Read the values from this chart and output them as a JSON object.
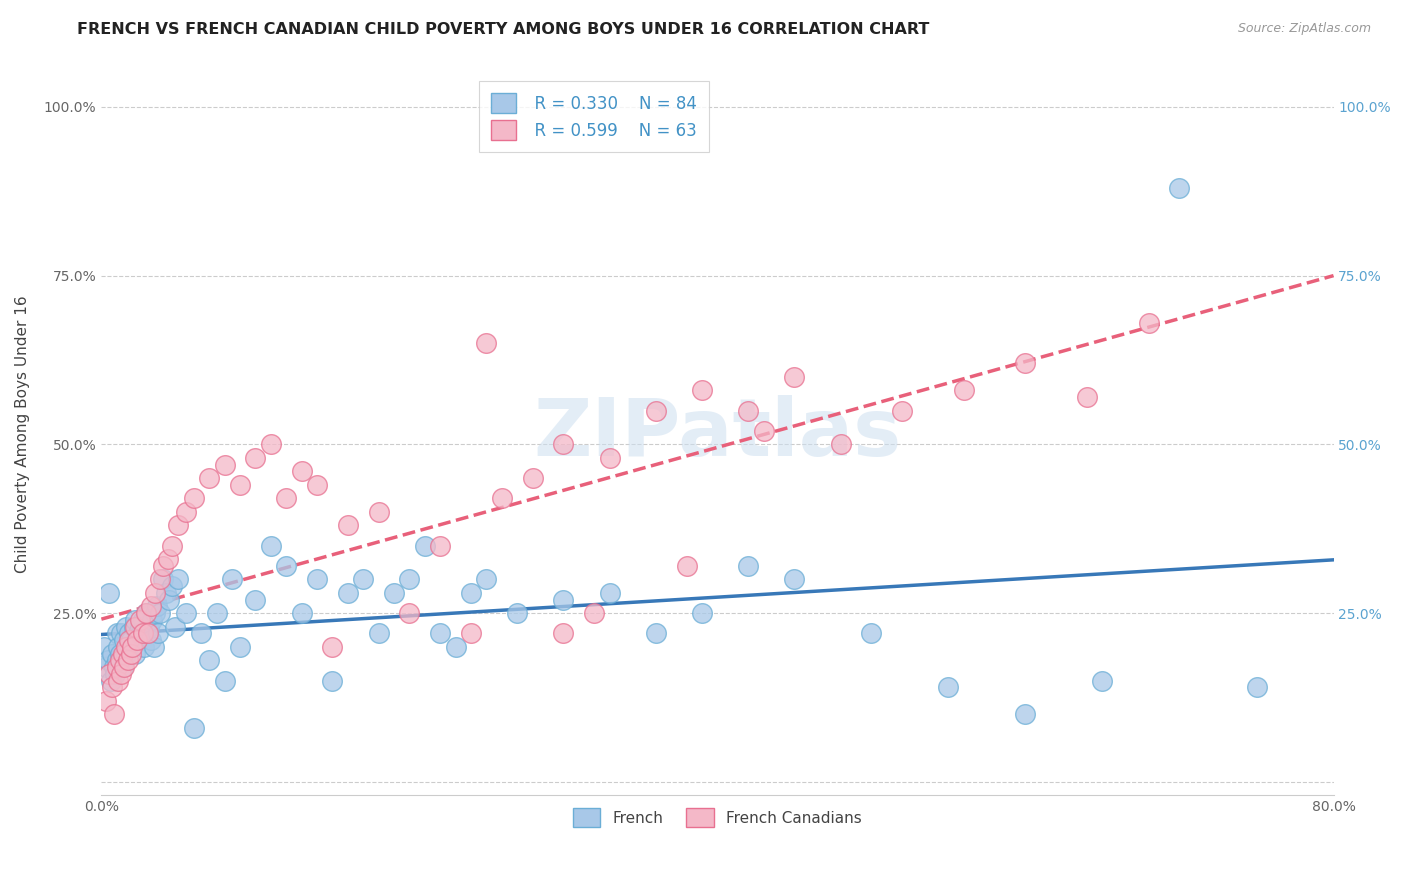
{
  "title": "FRENCH VS FRENCH CANADIAN CHILD POVERTY AMONG BOYS UNDER 16 CORRELATION CHART",
  "source": "Source: ZipAtlas.com",
  "ylabel": "Child Poverty Among Boys Under 16",
  "xlim": [
    0.0,
    0.8
  ],
  "ylim": [
    -0.02,
    1.05
  ],
  "yticks": [
    0.0,
    0.25,
    0.5,
    0.75,
    1.0
  ],
  "ytick_labels_left": [
    "",
    "25.0%",
    "50.0%",
    "75.0%",
    "100.0%"
  ],
  "ytick_labels_right": [
    "",
    "25.0%",
    "50.0%",
    "75.0%",
    "100.0%"
  ],
  "xticks": [
    0.0,
    0.1,
    0.2,
    0.3,
    0.4,
    0.5,
    0.6,
    0.7,
    0.8
  ],
  "xtick_labels": [
    "0.0%",
    "",
    "",
    "",
    "",
    "",
    "",
    "",
    "80.0%"
  ],
  "legend_r_french": "R = 0.330",
  "legend_n_french": "N = 84",
  "legend_r_canadian": "R = 0.599",
  "legend_n_canadian": "N = 63",
  "french_color": "#a8c8e8",
  "french_edge_color": "#6baed6",
  "canadian_color": "#f4b8c8",
  "canadian_edge_color": "#e87090",
  "trendline_french_color": "#3878b8",
  "trendline_canadian_color": "#e8607a",
  "watermark": "ZIPatlas",
  "french_scatter_x": [
    0.002,
    0.003,
    0.004,
    0.005,
    0.006,
    0.007,
    0.008,
    0.009,
    0.01,
    0.01,
    0.011,
    0.012,
    0.013,
    0.013,
    0.014,
    0.015,
    0.016,
    0.016,
    0.017,
    0.018,
    0.019,
    0.02,
    0.021,
    0.022,
    0.022,
    0.023,
    0.024,
    0.025,
    0.026,
    0.027,
    0.028,
    0.029,
    0.03,
    0.031,
    0.032,
    0.033,
    0.034,
    0.035,
    0.036,
    0.037,
    0.038,
    0.04,
    0.042,
    0.044,
    0.046,
    0.048,
    0.05,
    0.055,
    0.06,
    0.065,
    0.07,
    0.075,
    0.08,
    0.085,
    0.09,
    0.1,
    0.11,
    0.12,
    0.13,
    0.14,
    0.15,
    0.16,
    0.17,
    0.18,
    0.19,
    0.2,
    0.21,
    0.22,
    0.23,
    0.24,
    0.25,
    0.27,
    0.3,
    0.33,
    0.36,
    0.39,
    0.42,
    0.45,
    0.5,
    0.55,
    0.6,
    0.65,
    0.7,
    0.75
  ],
  "french_scatter_y": [
    0.2,
    0.17,
    0.18,
    0.28,
    0.15,
    0.19,
    0.17,
    0.16,
    0.22,
    0.18,
    0.2,
    0.19,
    0.18,
    0.22,
    0.17,
    0.21,
    0.19,
    0.23,
    0.2,
    0.22,
    0.21,
    0.2,
    0.23,
    0.19,
    0.24,
    0.21,
    0.22,
    0.23,
    0.22,
    0.24,
    0.2,
    0.25,
    0.22,
    0.23,
    0.21,
    0.24,
    0.2,
    0.25,
    0.26,
    0.22,
    0.25,
    0.3,
    0.28,
    0.27,
    0.29,
    0.23,
    0.3,
    0.25,
    0.08,
    0.22,
    0.18,
    0.25,
    0.15,
    0.3,
    0.2,
    0.27,
    0.35,
    0.32,
    0.25,
    0.3,
    0.15,
    0.28,
    0.3,
    0.22,
    0.28,
    0.3,
    0.35,
    0.22,
    0.2,
    0.28,
    0.3,
    0.25,
    0.27,
    0.28,
    0.22,
    0.25,
    0.32,
    0.3,
    0.22,
    0.14,
    0.1,
    0.15,
    0.88,
    0.14
  ],
  "canadian_scatter_x": [
    0.003,
    0.005,
    0.007,
    0.008,
    0.01,
    0.011,
    0.012,
    0.013,
    0.014,
    0.015,
    0.016,
    0.017,
    0.018,
    0.019,
    0.02,
    0.022,
    0.023,
    0.025,
    0.027,
    0.029,
    0.03,
    0.032,
    0.035,
    0.038,
    0.04,
    0.043,
    0.046,
    0.05,
    0.055,
    0.06,
    0.07,
    0.08,
    0.09,
    0.1,
    0.11,
    0.12,
    0.13,
    0.14,
    0.15,
    0.16,
    0.18,
    0.2,
    0.22,
    0.24,
    0.26,
    0.28,
    0.3,
    0.33,
    0.36,
    0.39,
    0.42,
    0.45,
    0.48,
    0.52,
    0.56,
    0.6,
    0.64,
    0.68,
    0.3,
    0.38,
    0.43,
    0.25,
    0.32
  ],
  "canadian_scatter_y": [
    0.12,
    0.16,
    0.14,
    0.1,
    0.17,
    0.15,
    0.18,
    0.16,
    0.19,
    0.17,
    0.2,
    0.18,
    0.21,
    0.19,
    0.2,
    0.23,
    0.21,
    0.24,
    0.22,
    0.25,
    0.22,
    0.26,
    0.28,
    0.3,
    0.32,
    0.33,
    0.35,
    0.38,
    0.4,
    0.42,
    0.45,
    0.47,
    0.44,
    0.48,
    0.5,
    0.42,
    0.46,
    0.44,
    0.2,
    0.38,
    0.4,
    0.25,
    0.35,
    0.22,
    0.42,
    0.45,
    0.5,
    0.48,
    0.55,
    0.58,
    0.55,
    0.6,
    0.5,
    0.55,
    0.58,
    0.62,
    0.57,
    0.68,
    0.22,
    0.32,
    0.52,
    0.65,
    0.25
  ],
  "background_color": "#ffffff",
  "grid_color": "#cccccc",
  "title_fontsize": 11.5,
  "axis_label_fontsize": 11,
  "tick_fontsize": 10,
  "legend_fontsize": 12,
  "right_tick_color": "#5ba3d0"
}
